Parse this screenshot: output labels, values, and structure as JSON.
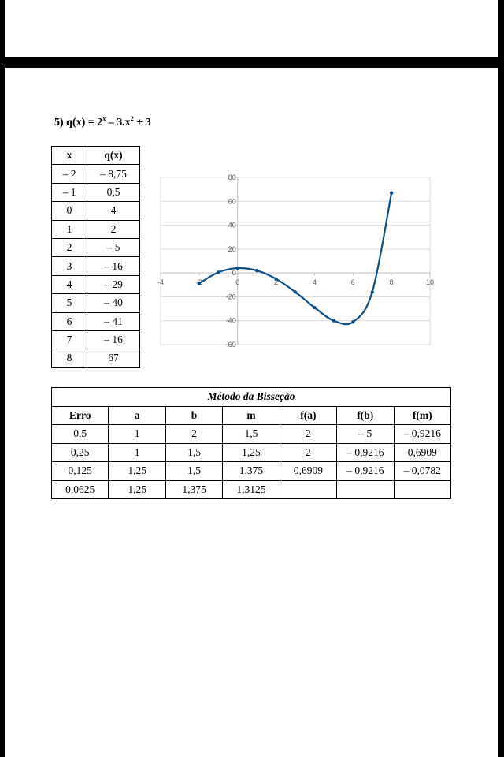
{
  "problem": {
    "prefix": "5) q(x) = 2",
    "exp1": "x",
    "mid": " – 3.x",
    "exp2": "2",
    "suffix": " + 3"
  },
  "value_table": {
    "headers": [
      "x",
      "q(x)"
    ],
    "rows": [
      [
        "– 2",
        "– 8,75"
      ],
      [
        "– 1",
        "0,5"
      ],
      [
        "0",
        "4"
      ],
      [
        "1",
        "2"
      ],
      [
        "2",
        "– 5"
      ],
      [
        "3",
        "– 16"
      ],
      [
        "4",
        "– 29"
      ],
      [
        "5",
        "– 40"
      ],
      [
        "6",
        "– 41"
      ],
      [
        "7",
        "– 16"
      ],
      [
        "8",
        "67"
      ]
    ]
  },
  "chart_data": {
    "type": "scatter",
    "title": "",
    "xlabel": "",
    "ylabel": "",
    "xlim": [
      -4,
      10
    ],
    "ylim": [
      -60,
      80
    ],
    "xticks": [
      "-4",
      "-2",
      "0",
      "2",
      "4",
      "6",
      "8",
      "10"
    ],
    "yticks": [
      "80",
      "60",
      "40",
      "20",
      "0",
      "-20",
      "-40",
      "-60"
    ],
    "grid": true,
    "line_color": "#0b4f8a",
    "series": [
      {
        "x": [
          -2,
          -1,
          0,
          1,
          2,
          3,
          4,
          5,
          6,
          7,
          8
        ],
        "y": [
          -8.75,
          0.5,
          4,
          2,
          -5,
          -16,
          -29,
          -40,
          -41,
          -16,
          67
        ]
      }
    ]
  },
  "bisection_table": {
    "caption": "Método da Bisseção",
    "headers": [
      "Erro",
      "a",
      "b",
      "m",
      "f(a)",
      "f(b)",
      "f(m)"
    ],
    "rows": [
      [
        "0,5",
        "1",
        "2",
        "1,5",
        "2",
        "– 5",
        "– 0,9216"
      ],
      [
        "0,25",
        "1",
        "1,5",
        "1,25",
        "2",
        "– 0,9216",
        "0,6909"
      ],
      [
        "0,125",
        "1,25",
        "1,5",
        "1,375",
        "0,6909",
        "– 0,9216",
        "– 0,0782"
      ],
      [
        "0,0625",
        "1,25",
        "1,375",
        "1,3125",
        "",
        "",
        ""
      ]
    ]
  }
}
